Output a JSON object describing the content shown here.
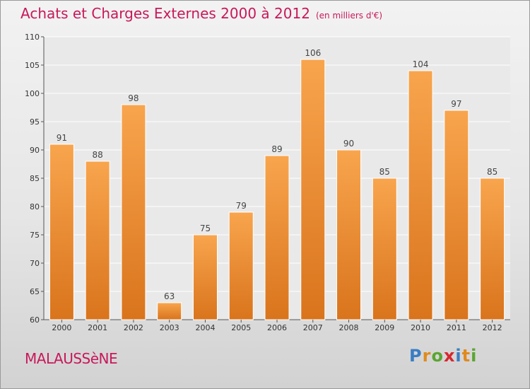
{
  "header": {
    "title": "Achats et Charges Externes 2000 à 2012",
    "subtitle": "(en milliers d'€)"
  },
  "footer": {
    "city": "MALAUSSèNE",
    "brand": [
      "P",
      "r",
      "o",
      "x",
      "i",
      "t",
      "i"
    ],
    "brand_colors": [
      "#3a7dc4",
      "#e08a1e",
      "#5aa532",
      "#d8262e",
      "#3a7dc4",
      "#e08a1e",
      "#5aa532"
    ]
  },
  "colors": {
    "bar_top": "#f8a54e",
    "bar_bottom": "#d9741c",
    "title": "#c8185a"
  },
  "chart_data": {
    "type": "bar",
    "categories": [
      "2000",
      "2001",
      "2002",
      "2003",
      "2004",
      "2005",
      "2006",
      "2007",
      "2008",
      "2009",
      "2010",
      "2011",
      "2012"
    ],
    "values": [
      91,
      88,
      98,
      63,
      75,
      79,
      89,
      106,
      90,
      85,
      104,
      97,
      85
    ],
    "ylim": [
      60,
      110
    ],
    "yticks": [
      60,
      65,
      70,
      75,
      80,
      85,
      90,
      95,
      100,
      105,
      110
    ],
    "grid": true
  }
}
